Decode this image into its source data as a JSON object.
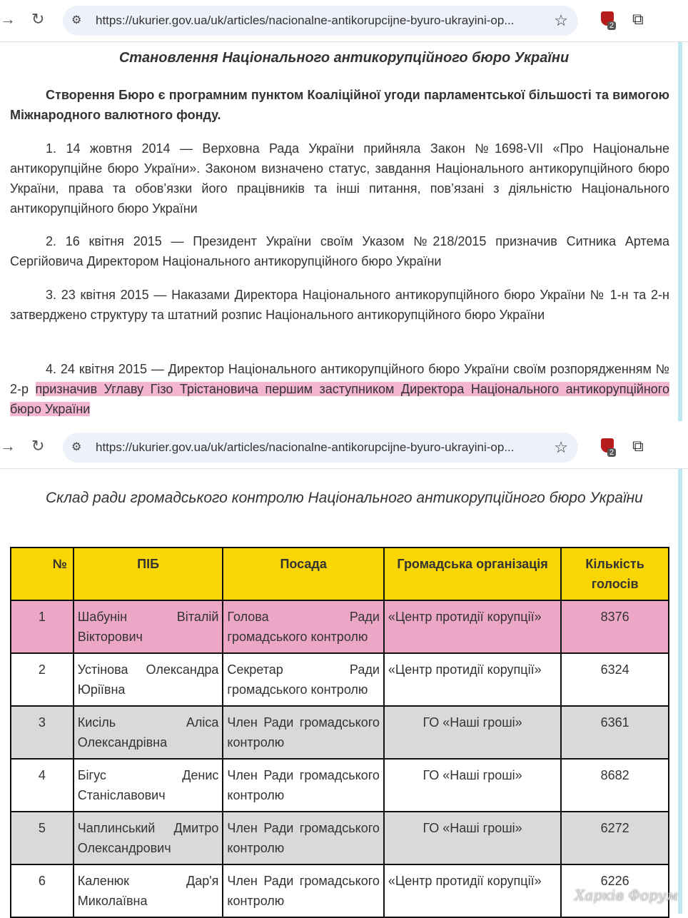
{
  "browser": {
    "url": "https://ukurier.gov.ua/uk/articles/nacionalne-antikorupcijne-byuro-ukrayini-op...",
    "extension_badge": "2",
    "icons": [
      "forward-icon",
      "reload-icon",
      "site-settings-icon",
      "bookmark-star-icon",
      "shield-extension-icon",
      "extensions-puzzle-icon"
    ]
  },
  "article1": {
    "title": "Становлення Національного антикорупційного бюро України",
    "lead": "Створення Бюро є програмним пунктом Коаліційної угоди парламентської більшості та вимогою Міжнародного валютного фонду.",
    "items": [
      "1. 14 жовтня 2014 — Верховна Рада України прийняла Закон №1698-VII «Про Національне антикорупційне бюро України». Законом визначено статус, завдання Національного антикорупційного бюро України, права та обов’язки його працівників та інші питання, пов’язані з діяльністю Національного антикорупційного бюро України",
      "2. 16 квітня 2015 — Президент України своїм Указом №218/2015 призначив Ситника Артема Сергійовича Директором Національного антикорупційного бюро України",
      "3. 23 квітня 2015 — Наказами Директора Національного антикорупційного бюро України № 1-н та 2-н затверджено структуру та штатний розпис Національного антикорупційного бюро України"
    ],
    "item4_plain": "4. 24 квітня 2015 — Директор Національного антикорупційного бюро України своїм розпорядженням № 2-р ",
    "item4_highlighted": "призначив Углаву Гізо Трістановича першим заступником Директора Національного антикорупційного бюро України"
  },
  "article2": {
    "title": "Склад ради громадського контролю Національного антикорупційного бюро України",
    "table": {
      "headers": [
        "№",
        "ПІБ",
        "Посада",
        "Громадська організація",
        "Кількість голосів"
      ],
      "rows": [
        {
          "n": "1",
          "name": "Шабунін Віталій Вікторович",
          "position": "Голова Ради громадського контролю",
          "org": "«Центр протидії корупції»",
          "votes": "8376",
          "highlighted": true
        },
        {
          "n": "2",
          "name": "Устінова Олександра Юріївна",
          "position": "Секретар Ради громадського контролю",
          "org": "«Центр протидії корупції»",
          "votes": "6324"
        },
        {
          "n": "3",
          "name": "Кисіль Аліса Олександрівна",
          "position": "Член Ради громадського контролю",
          "org": "ГО «Наші гроші»",
          "votes": "6361"
        },
        {
          "n": "4",
          "name": "Бігус Денис Станіславович",
          "position": "Член Ради громадського контролю",
          "org": "ГО «Наші гроші»",
          "votes": "8682"
        },
        {
          "n": "5",
          "name": "Чаплинський Дмитро Олександрович",
          "position": "Член Ради громадського контролю",
          "org": "ГО «Наші гроші»",
          "votes": "6272"
        },
        {
          "n": "6",
          "name": "Каленюк Дар'я Миколаївна",
          "position": "Член Ради громадського контролю",
          "org": "«Центр протидії корупції»",
          "votes": "6226"
        }
      ]
    }
  },
  "watermark": "Харків Форум",
  "colors": {
    "highlight": "#f3b5cf",
    "header": "#fbd605",
    "row_alt": "#d9d9d9"
  }
}
